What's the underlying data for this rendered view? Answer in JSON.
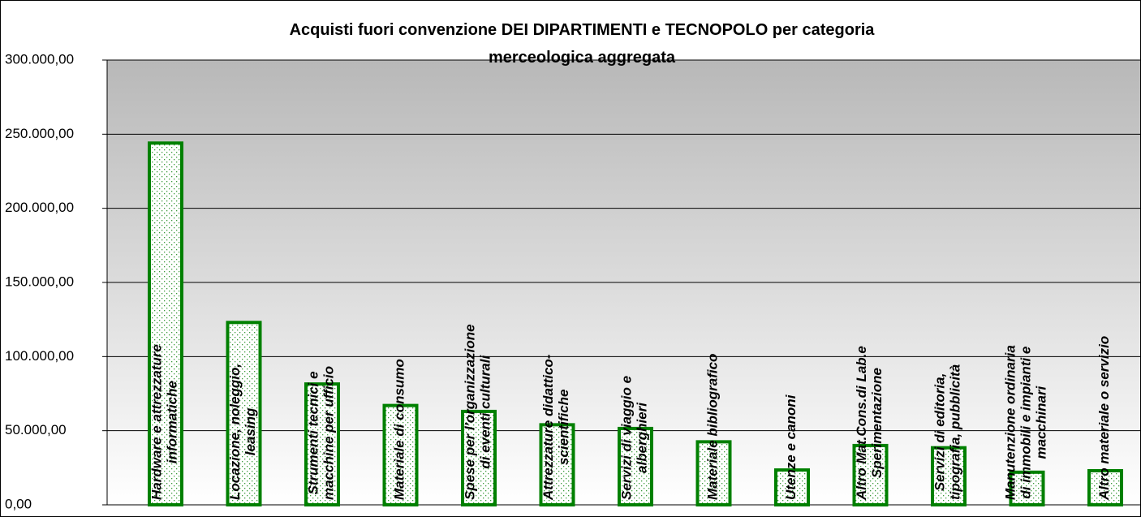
{
  "chart_data": {
    "type": "bar",
    "title": "Acquisti fuori convenzione DEI DIPARTIMENTI e TECNOPOLO per categoria\nmerceologica aggregata",
    "categories": [
      "Hardware e attrezzature\ninformatiche",
      "Locazione, noleggio,\nleasing",
      "Strumenti tecnici e\nmacchine per ufficio",
      "Materiale di consumo",
      "Spese per l'organizzazione\ndi eventi culturali",
      "Attrezzature didattico-\nscientifiche",
      "Servizi di viaggio e\nalberghieri",
      "Materiale bibliografico",
      "Utenze e canoni",
      "Altro Mat.Cons.di Lab.e\nSperimentazione",
      "Servizi di editoria,\ntipografia, pubblicità",
      "Manutenzione ordinaria\ndi immobili e impianti e\nmacchinari",
      "Altro materiale o servizio"
    ],
    "values": [
      244000,
      123000,
      81500,
      67000,
      63000,
      54000,
      51500,
      42500,
      23500,
      40000,
      38500,
      22000,
      23000
    ],
    "color": "#008000",
    "ylim": [
      0,
      300000
    ],
    "yticks": [
      {
        "value": 0,
        "label": "0,00"
      },
      {
        "value": 50000,
        "label": "50.000,00"
      },
      {
        "value": 100000,
        "label": "100.000,00"
      },
      {
        "value": 150000,
        "label": "150.000,00"
      },
      {
        "value": 200000,
        "label": "200.000,00"
      },
      {
        "value": 250000,
        "label": "250.000,00"
      },
      {
        "value": 300000,
        "label": "300.000,00"
      }
    ],
    "grid": true
  }
}
